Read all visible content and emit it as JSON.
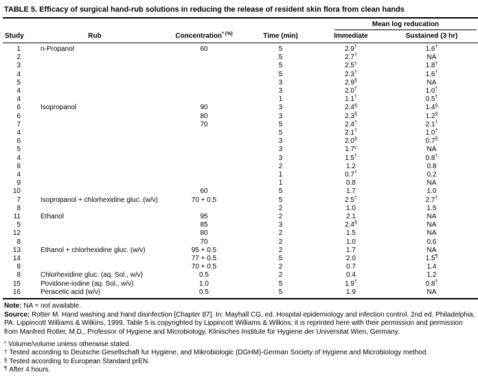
{
  "title": "TABLE 5. Efficacy of surgical hand-rub solutions in reducing the release of resident skin flora from clean hands",
  "table": {
    "spanner": "Mean log reducation",
    "columns": [
      "Study",
      "Rub",
      "Concentration^* (%)",
      "Time (min)",
      "Immediate",
      "Sustained (3 hr)"
    ],
    "rows": [
      [
        "1",
        "n-Propanol",
        "60",
        "5",
        "2.9^†",
        "1.6^†"
      ],
      [
        "2",
        "",
        "",
        "5",
        "2.7^†",
        "NA"
      ],
      [
        "3",
        "",
        "",
        "5",
        "2.5^†",
        "1.8^†"
      ],
      [
        "4",
        "",
        "",
        "5",
        "2.3^†",
        "1.6^†"
      ],
      [
        "5",
        "",
        "",
        "3",
        "2.9^§",
        "NA"
      ],
      [
        "4",
        "",
        "",
        "3",
        "2.0^†",
        "1.0^†"
      ],
      [
        "4",
        "",
        "",
        "1",
        "1.1^†",
        "0.5^†"
      ],
      [
        "6",
        "Isopropanol",
        "90",
        "3",
        "2.4^§",
        "1.4^§"
      ],
      [
        "6",
        "",
        "80",
        "3",
        "2.3^§",
        "1.2^§"
      ],
      [
        "7",
        "",
        "70",
        "5",
        "2.4^†",
        "2.1^†"
      ],
      [
        "4",
        "",
        "",
        "5",
        "2.1^†",
        "1.0^†"
      ],
      [
        "6",
        "",
        "",
        "3",
        "2.0^§",
        "0.7^§"
      ],
      [
        "5",
        "",
        "",
        "3",
        "1.7^c",
        "NA"
      ],
      [
        "4",
        "",
        "",
        "3",
        "1.5^†",
        "0.8^†"
      ],
      [
        "8",
        "",
        "",
        "2",
        "1.2",
        "0.8"
      ],
      [
        "4",
        "",
        "",
        "1",
        "0.7^†",
        "0.2"
      ],
      [
        "9",
        "",
        "",
        "1",
        "0.8",
        "NA"
      ],
      [
        "10",
        "",
        "60",
        "5",
        "1.7",
        "1.0"
      ],
      [
        "7",
        "Isopropanol + chlorhexidine gluc. (w/v)",
        "70 + 0.5",
        "5",
        "2.5^†",
        "2.7^†"
      ],
      [
        "8",
        "",
        "",
        "2",
        "1.0",
        "1.5"
      ],
      [
        "11",
        "Ethanol",
        "95",
        "2",
        "2.1",
        "NA"
      ],
      [
        "5",
        "",
        "85",
        "3",
        "2.4^§",
        "NA"
      ],
      [
        "12",
        "",
        "80",
        "2",
        "1.5",
        "NA"
      ],
      [
        "8",
        "",
        "70",
        "2",
        "1.0",
        "0.6"
      ],
      [
        "13",
        "Ethanol + chlorhexidine gluc. (w/v)",
        "95 + 0.5",
        "2",
        "1.7",
        "NA"
      ],
      [
        "14",
        "",
        "77 + 0.5",
        "5",
        "2.0",
        "1.5^¶"
      ],
      [
        "8",
        "",
        "70 + 0.5",
        "2",
        "0.7",
        "1.4"
      ],
      [
        "8",
        "Chlorhexidine gluc. (aq. Sol., w/v)",
        "0.5",
        "2",
        "0.4",
        "1.2"
      ],
      [
        "15",
        "Povidone-iodine (aq. Sol., w/v)",
        "1.0",
        "5",
        "1.9^†",
        "0.8^†"
      ],
      [
        "16",
        "Peracetic acid (w/v)",
        "0.5",
        "5",
        "1.9",
        "NA"
      ]
    ]
  },
  "notes": {
    "note_label": "Note:",
    "note_text": " NA = not available.",
    "source_label": "Source:",
    "source_text": " Rotter M. Hand washing and hand disinfection [Chapter 87]. In: Mayhall CG, ed. Hospital epidemiology and infection control. 2nd ed. Philadelphia, PA: Lippincott Williams & Wilkins, 1999. Table 5 is copyrighted by Lippincott Williams & Wilkins; it is reprinted here with their permission and permission from Manfred Rotter, M.D., Professor of Hygiene and Microbiology, Klinisches Institute für Hygiene der Universitat Wien, Germany.",
    "footnotes": [
      {
        "symbol": "*",
        "text": "Volume/volume unless otherwise stated."
      },
      {
        "symbol": "†",
        "text": "Tested according to Deutsche Gesellschaft fur Hygiene, and Mikrobiologic (DGHM)-German Society of Hygiene and Microbiology method."
      },
      {
        "symbol": "§",
        "text": "Tested according to European Standard prEN."
      },
      {
        "symbol": "¶",
        "text": "After 4 hours."
      }
    ]
  }
}
